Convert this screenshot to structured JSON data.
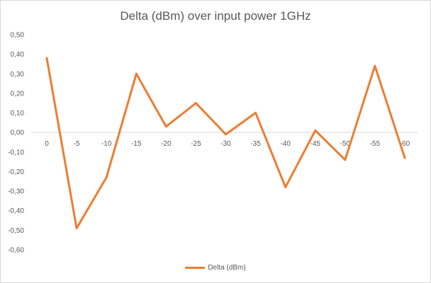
{
  "chart_data": {
    "type": "line",
    "title": "Delta (dBm) over input power 1GHz",
    "xlabel": "",
    "ylabel": "",
    "categories": [
      "0",
      "-5",
      "-10",
      "-15",
      "-20",
      "-25",
      "-30",
      "-35",
      "-40",
      "-45",
      "-50",
      "-55",
      "-60"
    ],
    "series": [
      {
        "name": "Delta (dBm)",
        "color": "#ed7d31",
        "values": [
          0.38,
          -0.49,
          -0.23,
          0.3,
          0.03,
          0.15,
          -0.01,
          0.1,
          -0.28,
          0.01,
          -0.14,
          0.34,
          -0.13
        ]
      }
    ],
    "ylim": [
      -0.6,
      0.5
    ],
    "y_ticks": [
      "0,50",
      "0,40",
      "0,30",
      "0,20",
      "0,10",
      "0,00",
      "-0,10",
      "-0,20",
      "-0,30",
      "-0,40",
      "-0,50",
      "-0,60"
    ],
    "grid": false,
    "legend_position": "bottom"
  }
}
